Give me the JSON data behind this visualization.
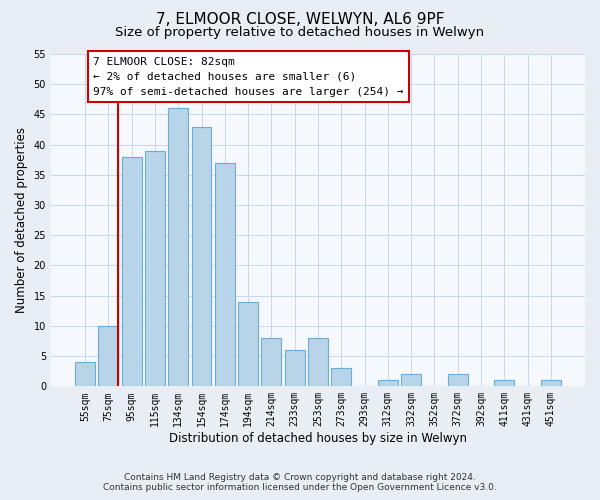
{
  "title": "7, ELMOOR CLOSE, WELWYN, AL6 9PF",
  "subtitle": "Size of property relative to detached houses in Welwyn",
  "xlabel": "Distribution of detached houses by size in Welwyn",
  "ylabel": "Number of detached properties",
  "categories": [
    "55sqm",
    "75sqm",
    "95sqm",
    "115sqm",
    "134sqm",
    "154sqm",
    "174sqm",
    "194sqm",
    "214sqm",
    "233sqm",
    "253sqm",
    "273sqm",
    "293sqm",
    "312sqm",
    "332sqm",
    "352sqm",
    "372sqm",
    "392sqm",
    "411sqm",
    "431sqm",
    "451sqm"
  ],
  "values": [
    4,
    10,
    38,
    39,
    46,
    43,
    37,
    14,
    8,
    6,
    8,
    3,
    0,
    1,
    2,
    0,
    2,
    0,
    1,
    0,
    1
  ],
  "bar_color": "#b8d4e8",
  "bar_edge_color": "#6aaed6",
  "background_color": "#e8eef4",
  "plot_bg_color": "#f5f8fc",
  "grid_color": "#c8d8e8",
  "annotation_text_line1": "7 ELMOOR CLOSE: 82sqm",
  "annotation_text_line2": "← 2% of detached houses are smaller (6)",
  "annotation_text_line3": "97% of semi-detached houses are larger (254) →",
  "annotation_box_color": "#ffffff",
  "annotation_box_edge_color": "#cc0000",
  "vline_color": "#cc0000",
  "ylim": [
    0,
    55
  ],
  "yticks": [
    0,
    5,
    10,
    15,
    20,
    25,
    30,
    35,
    40,
    45,
    50,
    55
  ],
  "footer_line1": "Contains HM Land Registry data © Crown copyright and database right 2024.",
  "footer_line2": "Contains public sector information licensed under the Open Government Licence v3.0.",
  "title_fontsize": 11,
  "subtitle_fontsize": 9.5,
  "tick_fontsize": 7,
  "ylabel_fontsize": 8.5,
  "xlabel_fontsize": 8.5,
  "annotation_fontsize": 8,
  "footer_fontsize": 6.5
}
